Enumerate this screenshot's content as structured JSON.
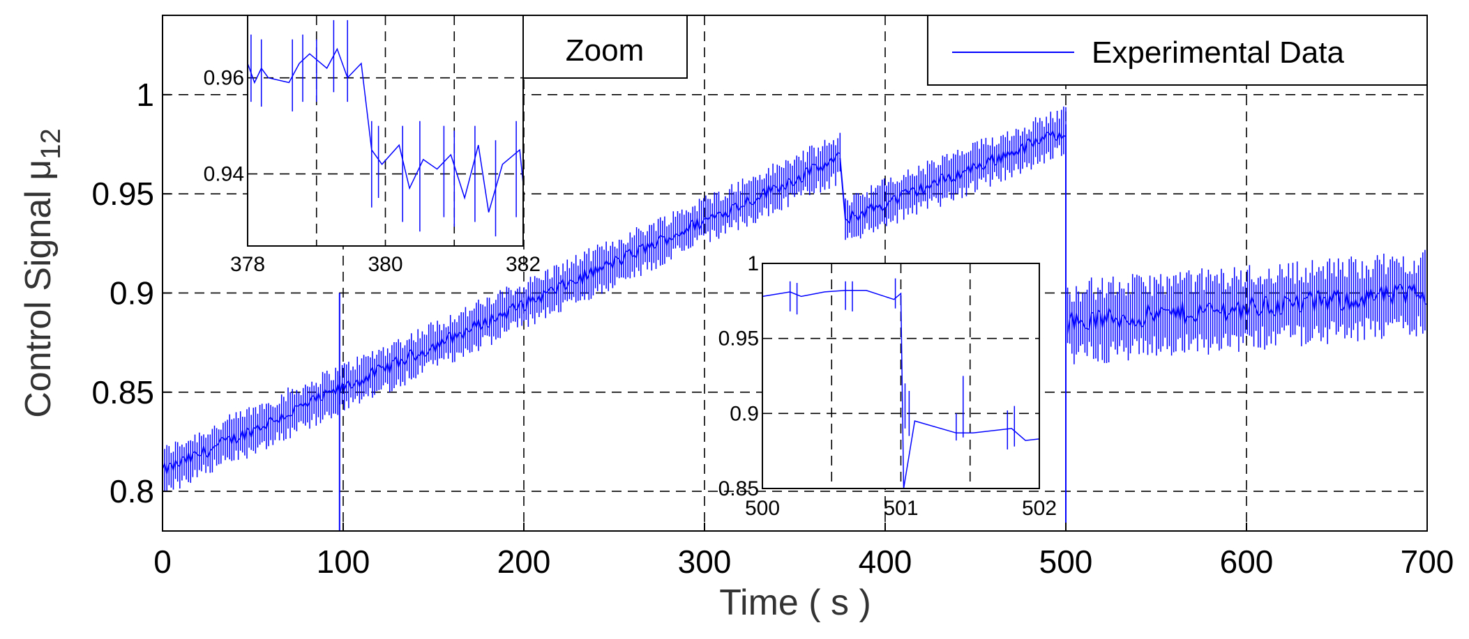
{
  "chart_data": {
    "type": "line",
    "title": "",
    "xlabel": "Time ( s )",
    "ylabel": "Control Signal μ",
    "ylabel_subscript": "12",
    "xlim": [
      0,
      700
    ],
    "ylim": [
      0.78,
      1.04
    ],
    "x_ticks": [
      "0",
      "100",
      "200",
      "300",
      "400",
      "500",
      "600",
      "700"
    ],
    "y_ticks": [
      "0.8",
      "0.85",
      "0.9",
      "0.95",
      "1"
    ],
    "grid": true,
    "legend": {
      "position": "top-right",
      "entries": [
        "Experimental Data"
      ],
      "color": "#0000ff"
    },
    "zoom_label": "Zoom",
    "series": [
      {
        "name": "Experimental Data",
        "segments": [
          {
            "x_start": 0,
            "x_end": 375,
            "y_start": 0.81,
            "y_end": 0.968,
            "noise_band": 0.012
          },
          {
            "x_start": 378,
            "x_end": 500,
            "y_start": 0.937,
            "y_end": 0.982,
            "noise_band": 0.012
          },
          {
            "x_start": 501,
            "x_end": 700,
            "y_start": 0.885,
            "y_end": 0.9,
            "noise_band": 0.02
          }
        ],
        "spikes": [
          {
            "x": 98,
            "y_low": 0.78,
            "y_high": 0.9
          },
          {
            "x": 500,
            "y_low": 0.78,
            "y_high": 0.985
          }
        ]
      }
    ],
    "insets": [
      {
        "name": "zoom-378-382",
        "xlim": [
          378,
          382
        ],
        "ylim": [
          0.925,
          0.973
        ],
        "x_ticks": [
          "378",
          "380",
          "382"
        ],
        "y_ticks": [
          "0.96",
          "0.94"
        ],
        "x_tick_values": [
          378,
          380,
          382
        ],
        "y_tick_values": [
          0.96,
          0.94
        ],
        "x_grid": [
          379,
          380,
          381
        ],
        "y_grid": [
          0.96,
          0.94
        ],
        "line_x": [
          378.0,
          378.1,
          378.2,
          378.3,
          378.6,
          378.75,
          378.9,
          379.15,
          379.3,
          379.45,
          379.65,
          379.8,
          379.95,
          380.2,
          380.35,
          380.55,
          380.75,
          380.95,
          381.15,
          381.35,
          381.5,
          381.7,
          381.95,
          382.0
        ],
        "line_y": [
          0.963,
          0.959,
          0.962,
          0.96,
          0.959,
          0.963,
          0.965,
          0.962,
          0.966,
          0.96,
          0.963,
          0.945,
          0.942,
          0.946,
          0.937,
          0.943,
          0.941,
          0.944,
          0.935,
          0.946,
          0.932,
          0.942,
          0.945,
          0.938
        ],
        "bars": [
          {
            "x": 378.05,
            "lo": 0.955,
            "hi": 0.969
          },
          {
            "x": 378.2,
            "lo": 0.954,
            "hi": 0.968
          },
          {
            "x": 378.65,
            "lo": 0.953,
            "hi": 0.968
          },
          {
            "x": 378.8,
            "lo": 0.955,
            "hi": 0.969
          },
          {
            "x": 379.0,
            "lo": 0.955,
            "hi": 0.968
          },
          {
            "x": 379.25,
            "lo": 0.957,
            "hi": 0.972
          },
          {
            "x": 379.45,
            "lo": 0.955,
            "hi": 0.972
          },
          {
            "x": 379.8,
            "lo": 0.933,
            "hi": 0.951
          },
          {
            "x": 379.9,
            "lo": 0.935,
            "hi": 0.95
          },
          {
            "x": 380.25,
            "lo": 0.93,
            "hi": 0.95
          },
          {
            "x": 380.5,
            "lo": 0.928,
            "hi": 0.951
          },
          {
            "x": 380.85,
            "lo": 0.931,
            "hi": 0.95
          },
          {
            "x": 381.0,
            "lo": 0.929,
            "hi": 0.949
          },
          {
            "x": 381.3,
            "lo": 0.93,
            "hi": 0.95
          },
          {
            "x": 381.6,
            "lo": 0.927,
            "hi": 0.947
          },
          {
            "x": 381.9,
            "lo": 0.931,
            "hi": 0.951
          }
        ]
      },
      {
        "name": "zoom-500-502",
        "xlim": [
          500,
          502
        ],
        "ylim": [
          0.85,
          1.0
        ],
        "x_ticks": [
          "500",
          "501",
          "502"
        ],
        "y_ticks": [
          "1",
          "0.95",
          "0.9",
          "0.85"
        ],
        "x_tick_values": [
          500,
          501,
          502
        ],
        "y_tick_values": [
          1.0,
          0.95,
          0.9,
          0.85
        ],
        "x_grid": [
          500.5,
          501,
          501.5
        ],
        "y_grid": [
          0.95,
          0.9
        ],
        "line_x": [
          500.0,
          500.2,
          500.28,
          500.45,
          500.6,
          500.75,
          500.95,
          501.0,
          501.02,
          501.1,
          501.4,
          501.52,
          501.8,
          501.9,
          502.0
        ],
        "line_y": [
          0.978,
          0.981,
          0.978,
          0.981,
          0.982,
          0.982,
          0.976,
          0.98,
          0.85,
          0.895,
          0.887,
          0.887,
          0.89,
          0.882,
          0.883
        ],
        "bars": [
          {
            "x": 500.2,
            "lo": 0.968,
            "hi": 0.988
          },
          {
            "x": 500.25,
            "lo": 0.966,
            "hi": 0.987
          },
          {
            "x": 500.6,
            "lo": 0.969,
            "hi": 0.988
          },
          {
            "x": 500.65,
            "lo": 0.968,
            "hi": 0.988
          },
          {
            "x": 500.96,
            "lo": 0.97,
            "hi": 0.99
          },
          {
            "x": 501.03,
            "lo": 0.89,
            "hi": 0.92
          },
          {
            "x": 501.06,
            "lo": 0.885,
            "hi": 0.915
          },
          {
            "x": 501.4,
            "lo": 0.882,
            "hi": 0.9
          },
          {
            "x": 501.45,
            "lo": 0.884,
            "hi": 0.925
          },
          {
            "x": 501.77,
            "lo": 0.876,
            "hi": 0.902
          },
          {
            "x": 501.82,
            "lo": 0.878,
            "hi": 0.905
          }
        ]
      }
    ]
  }
}
